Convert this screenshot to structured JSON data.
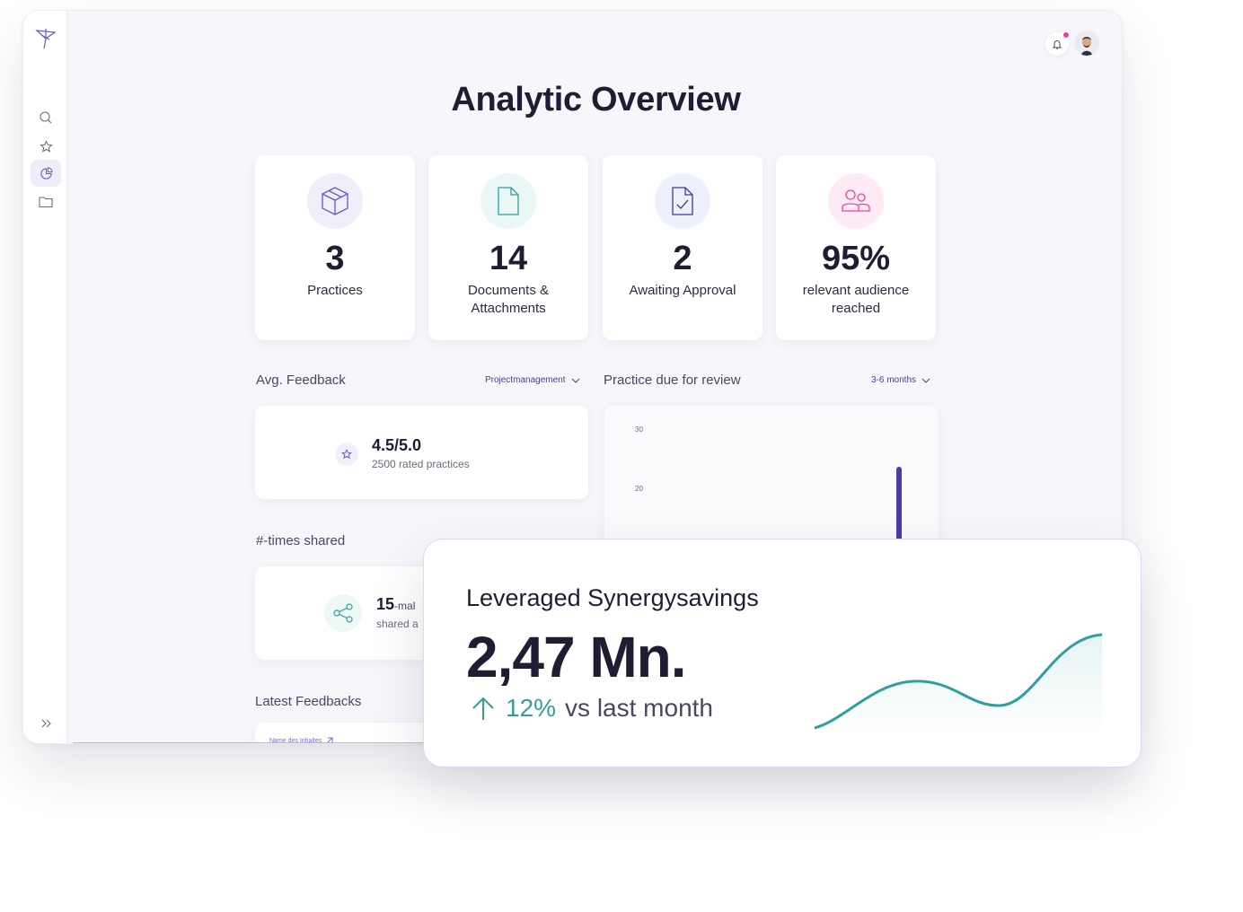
{
  "page": {
    "title": "Analytic Overview"
  },
  "sidebar": {
    "items": [
      {
        "name": "search",
        "icon": "search-icon"
      },
      {
        "name": "favorites",
        "icon": "star-icon"
      },
      {
        "name": "analytics",
        "icon": "pie-chart-icon",
        "active": true
      },
      {
        "name": "folders",
        "icon": "folder-icon"
      }
    ],
    "expand_label": "»"
  },
  "stats": [
    {
      "value": "3",
      "label": "Practices",
      "icon": "box-icon",
      "color": "#6a55c9",
      "bg": "#f0eefb"
    },
    {
      "value": "14",
      "label": "Documents & Attachments",
      "icon": "document-icon",
      "color": "#2f9e9c",
      "bg": "#eaf7f6"
    },
    {
      "value": "2",
      "label": "Awaiting Approval",
      "icon": "document-check-icon",
      "color": "#3b3b8f",
      "bg": "#eef0fb"
    },
    {
      "value": "95%",
      "label": "relevant audience reached",
      "icon": "users-icon",
      "color": "#e8489a",
      "bg": "#fdeaf4"
    }
  ],
  "feedback": {
    "title": "Avg. Feedback",
    "filter": "Projectmanagement",
    "value": "4.5/5.0",
    "sub": "2500 rated practices"
  },
  "review": {
    "title": "Practice due for review",
    "filter": "3-6 months",
    "ticks": [
      "30",
      "20"
    ]
  },
  "shared": {
    "title": "#-times shared",
    "value": "15",
    "value_suffix": "-mal",
    "sub": "shared a"
  },
  "latest": {
    "title": "Latest Feedbacks",
    "link": "Name des Inhaltes"
  },
  "savings": {
    "title": "Leveraged Synergysavings",
    "value": "2,47 Mn.",
    "trend_pct": "12%",
    "trend_text": "vs last month",
    "accent": "#2f9e9c"
  },
  "colors": {
    "primary": "#4b3aa8",
    "teal": "#2f9e9c",
    "pink": "#ee3d96"
  }
}
